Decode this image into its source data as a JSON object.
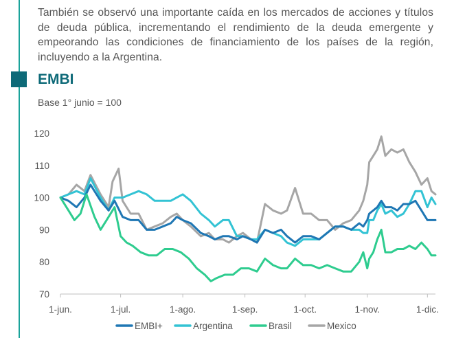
{
  "intro_text": "También se observó una importante caída en los mercados de acciones y títulos de deuda pública, incrementando el rendimiento de la deuda emergente y empeorando las condiciones de financiamiento de los países de la región, incluyendo a la Argentina.",
  "colors": {
    "accent": "#0e6a78",
    "rule": "#1aa39a",
    "text": "#555555"
  },
  "chart_data": {
    "type": "line",
    "title": "EMBI",
    "subtitle": "Base 1° junio = 100",
    "xlabel": "",
    "ylabel": "",
    "ylim": [
      70,
      120
    ],
    "yticks": [
      "70",
      "80",
      "90",
      "100",
      "110",
      "120"
    ],
    "grid": false,
    "legend_position": "bottom",
    "x_range": [
      0,
      187
    ],
    "x_ticks": [
      {
        "label": "1-jun.",
        "x": 0
      },
      {
        "label": "1-jul.",
        "x": 30
      },
      {
        "label": "1-ago.",
        "x": 61
      },
      {
        "label": "1-sep.",
        "x": 92
      },
      {
        "label": "1-oct.",
        "x": 122
      },
      {
        "label": "1-nov.",
        "x": 153
      },
      {
        "label": "1-dic.",
        "x": 183
      }
    ],
    "series": [
      {
        "name": "Mexico",
        "color": "#a6a6a6",
        "points": [
          [
            0,
            100
          ],
          [
            4,
            101
          ],
          [
            8,
            104
          ],
          [
            12,
            102
          ],
          [
            15,
            107
          ],
          [
            20,
            101
          ],
          [
            24,
            97
          ],
          [
            26,
            105
          ],
          [
            29,
            109
          ],
          [
            31,
            99
          ],
          [
            35,
            95
          ],
          [
            39,
            95
          ],
          [
            43,
            90
          ],
          [
            47,
            91
          ],
          [
            51,
            92
          ],
          [
            55,
            94
          ],
          [
            58,
            95
          ],
          [
            61,
            93
          ],
          [
            65,
            91
          ],
          [
            70,
            88
          ],
          [
            74,
            89
          ],
          [
            77,
            87
          ],
          [
            81,
            87
          ],
          [
            84,
            86
          ],
          [
            88,
            88
          ],
          [
            91,
            89
          ],
          [
            95,
            87
          ],
          [
            98,
            86
          ],
          [
            102,
            98
          ],
          [
            106,
            96
          ],
          [
            110,
            95
          ],
          [
            113,
            96
          ],
          [
            117,
            103
          ],
          [
            121,
            95
          ],
          [
            125,
            95
          ],
          [
            129,
            93
          ],
          [
            133,
            93
          ],
          [
            137,
            90
          ],
          [
            141,
            92
          ],
          [
            145,
            93
          ],
          [
            149,
            96
          ],
          [
            151,
            99
          ],
          [
            153,
            104
          ],
          [
            154,
            111
          ],
          [
            156,
            113
          ],
          [
            158,
            115
          ],
          [
            160,
            119
          ],
          [
            162,
            113
          ],
          [
            165,
            115
          ],
          [
            168,
            114
          ],
          [
            171,
            115
          ],
          [
            174,
            111
          ],
          [
            177,
            108
          ],
          [
            180,
            104
          ],
          [
            183,
            106
          ],
          [
            185,
            102
          ],
          [
            187,
            101
          ]
        ]
      },
      {
        "name": "Argentina",
        "color": "#33c3d4",
        "points": [
          [
            0,
            100
          ],
          [
            4,
            101
          ],
          [
            8,
            102
          ],
          [
            12,
            101
          ],
          [
            15,
            106
          ],
          [
            20,
            100
          ],
          [
            24,
            96
          ],
          [
            27,
            100
          ],
          [
            31,
            100
          ],
          [
            35,
            101
          ],
          [
            39,
            102
          ],
          [
            43,
            101
          ],
          [
            47,
            99
          ],
          [
            51,
            99
          ],
          [
            55,
            99
          ],
          [
            58,
            100
          ],
          [
            61,
            101
          ],
          [
            65,
            99
          ],
          [
            70,
            95
          ],
          [
            74,
            93
          ],
          [
            77,
            91
          ],
          [
            81,
            93
          ],
          [
            84,
            93
          ],
          [
            88,
            88
          ],
          [
            91,
            88
          ],
          [
            95,
            87
          ],
          [
            98,
            87
          ],
          [
            102,
            90
          ],
          [
            106,
            89
          ],
          [
            110,
            88
          ],
          [
            113,
            86
          ],
          [
            117,
            85
          ],
          [
            121,
            87
          ],
          [
            125,
            87
          ],
          [
            129,
            87
          ],
          [
            133,
            89
          ],
          [
            137,
            91
          ],
          [
            141,
            91
          ],
          [
            145,
            90
          ],
          [
            149,
            90
          ],
          [
            151,
            89
          ],
          [
            153,
            89
          ],
          [
            154,
            93
          ],
          [
            156,
            93
          ],
          [
            158,
            96
          ],
          [
            160,
            98
          ],
          [
            162,
            95
          ],
          [
            165,
            96
          ],
          [
            168,
            94
          ],
          [
            171,
            95
          ],
          [
            174,
            98
          ],
          [
            177,
            102
          ],
          [
            180,
            102
          ],
          [
            183,
            97
          ],
          [
            185,
            100
          ],
          [
            187,
            98
          ]
        ]
      },
      {
        "name": "EMBI+",
        "color": "#1f77b4",
        "points": [
          [
            0,
            100
          ],
          [
            4,
            99
          ],
          [
            8,
            97
          ],
          [
            12,
            100
          ],
          [
            15,
            104
          ],
          [
            20,
            99
          ],
          [
            24,
            96
          ],
          [
            27,
            99
          ],
          [
            31,
            94
          ],
          [
            35,
            93
          ],
          [
            39,
            93
          ],
          [
            43,
            90
          ],
          [
            47,
            90
          ],
          [
            51,
            91
          ],
          [
            55,
            92
          ],
          [
            58,
            94
          ],
          [
            61,
            93
          ],
          [
            65,
            92
          ],
          [
            70,
            89
          ],
          [
            74,
            88
          ],
          [
            77,
            87
          ],
          [
            81,
            88
          ],
          [
            84,
            88
          ],
          [
            88,
            87
          ],
          [
            91,
            88
          ],
          [
            95,
            87
          ],
          [
            98,
            86
          ],
          [
            102,
            90
          ],
          [
            106,
            89
          ],
          [
            110,
            90
          ],
          [
            113,
            88
          ],
          [
            117,
            86
          ],
          [
            121,
            88
          ],
          [
            125,
            88
          ],
          [
            129,
            87
          ],
          [
            133,
            89
          ],
          [
            137,
            91
          ],
          [
            141,
            91
          ],
          [
            145,
            90
          ],
          [
            149,
            92
          ],
          [
            151,
            91
          ],
          [
            153,
            93
          ],
          [
            154,
            95
          ],
          [
            156,
            96
          ],
          [
            158,
            97
          ],
          [
            160,
            99
          ],
          [
            162,
            97
          ],
          [
            165,
            97
          ],
          [
            168,
            96
          ],
          [
            171,
            98
          ],
          [
            174,
            98
          ],
          [
            177,
            99
          ],
          [
            180,
            96
          ],
          [
            183,
            93
          ],
          [
            185,
            93
          ],
          [
            187,
            93
          ]
        ]
      },
      {
        "name": "Brasil",
        "color": "#2ecc8f",
        "points": [
          [
            0,
            100
          ],
          [
            4,
            96
          ],
          [
            7,
            93
          ],
          [
            10,
            95
          ],
          [
            13,
            101
          ],
          [
            17,
            94
          ],
          [
            20,
            90
          ],
          [
            23,
            93
          ],
          [
            27,
            97
          ],
          [
            30,
            88
          ],
          [
            33,
            86
          ],
          [
            36,
            85
          ],
          [
            40,
            83
          ],
          [
            44,
            82
          ],
          [
            48,
            82
          ],
          [
            52,
            84
          ],
          [
            56,
            84
          ],
          [
            60,
            83
          ],
          [
            64,
            81
          ],
          [
            68,
            78
          ],
          [
            72,
            76
          ],
          [
            75,
            74
          ],
          [
            78,
            75
          ],
          [
            82,
            76
          ],
          [
            86,
            76
          ],
          [
            90,
            78
          ],
          [
            94,
            78
          ],
          [
            98,
            77
          ],
          [
            102,
            81
          ],
          [
            106,
            79
          ],
          [
            110,
            78
          ],
          [
            113,
            78
          ],
          [
            117,
            81
          ],
          [
            121,
            79
          ],
          [
            125,
            79
          ],
          [
            129,
            78
          ],
          [
            133,
            79
          ],
          [
            137,
            78
          ],
          [
            141,
            77
          ],
          [
            145,
            77
          ],
          [
            149,
            80
          ],
          [
            151,
            83
          ],
          [
            153,
            78
          ],
          [
            154,
            81
          ],
          [
            156,
            83
          ],
          [
            158,
            87
          ],
          [
            160,
            90
          ],
          [
            162,
            83
          ],
          [
            165,
            83
          ],
          [
            168,
            84
          ],
          [
            171,
            84
          ],
          [
            174,
            85
          ],
          [
            177,
            84
          ],
          [
            180,
            86
          ],
          [
            183,
            84
          ],
          [
            185,
            82
          ],
          [
            187,
            82
          ]
        ]
      }
    ],
    "legend": [
      "EMBI+",
      "Argentina",
      "Brasil",
      "Mexico"
    ]
  }
}
